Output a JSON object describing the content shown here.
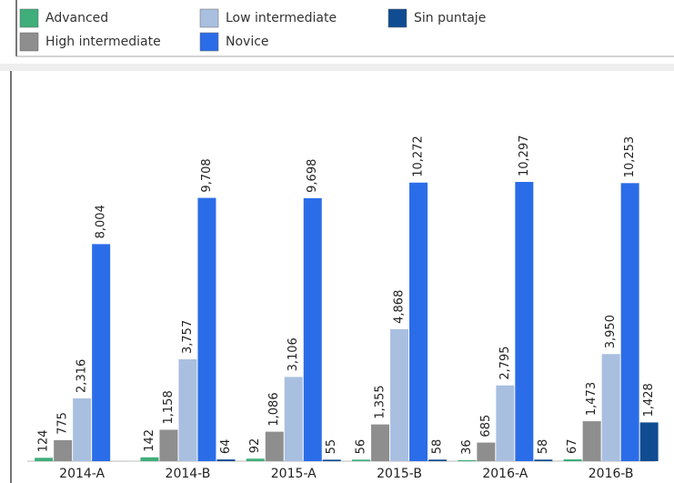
{
  "chart_data": {
    "type": "bar",
    "categories": [
      "2014-A",
      "2014-B",
      "2015-A",
      "2015-B",
      "2016-A",
      "2016-B"
    ],
    "series": [
      {
        "name": "Advanced",
        "color": "#3fae7a",
        "values": [
          124,
          142,
          92,
          56,
          36,
          67
        ],
        "value_labels": [
          "124",
          "142",
          "92",
          "56",
          "36",
          "67"
        ]
      },
      {
        "name": "High intermediate",
        "color": "#8e8e8e",
        "values": [
          775,
          1158,
          1086,
          1355,
          685,
          1473
        ],
        "value_labels": [
          "775",
          "1,158",
          "1,086",
          "1,355",
          "685",
          "1,473"
        ]
      },
      {
        "name": "Low intermediate",
        "color": "#a9bfe0",
        "values": [
          2316,
          3757,
          3106,
          4868,
          2795,
          3950
        ],
        "value_labels": [
          "2,316",
          "3,757",
          "3,106",
          "4,868",
          "2,795",
          "3,950"
        ]
      },
      {
        "name": "Novice",
        "color": "#2b6de8",
        "values": [
          8004,
          9708,
          9698,
          10272,
          10297,
          10253
        ],
        "value_labels": [
          "8,004",
          "9,708",
          "9,698",
          "10,272",
          "10,297",
          "10,253"
        ]
      },
      {
        "name": "Sin puntaje",
        "color": "#0f4c92",
        "values": [
          null,
          64,
          55,
          58,
          58,
          1428
        ],
        "value_labels": [
          null,
          "64",
          "55",
          "58",
          "58",
          "1,428"
        ]
      }
    ]
  }
}
